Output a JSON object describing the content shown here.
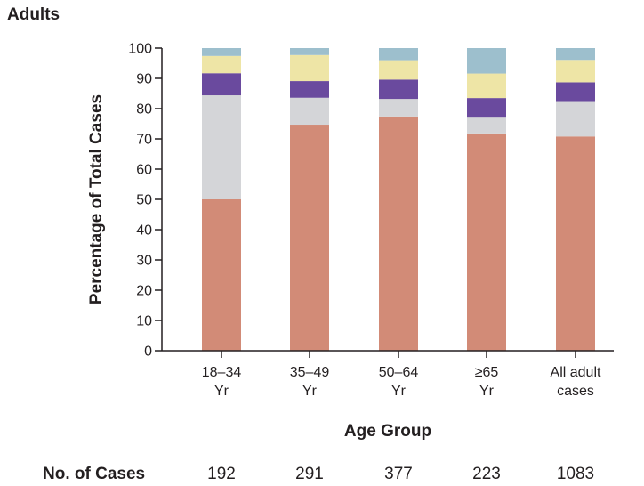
{
  "panel_label": "Adults",
  "cases_row": {
    "label": "No. of Cases",
    "values": [
      "192",
      "291",
      "377",
      "223",
      "1083"
    ]
  },
  "chart_data": {
    "type": "bar",
    "stacked": true,
    "title": "Adults",
    "xlabel": "Age Group",
    "ylabel": "Percentage of Total Cases",
    "ylim": [
      0,
      100
    ],
    "yticks": [
      0,
      10,
      20,
      30,
      40,
      50,
      60,
      70,
      80,
      90,
      100
    ],
    "categories": [
      [
        "18–34",
        "Yr"
      ],
      [
        "35–49",
        "Yr"
      ],
      [
        "50–64",
        "Yr"
      ],
      [
        "≥65",
        "Yr"
      ],
      [
        "All adult",
        "cases"
      ]
    ],
    "series": [
      {
        "name": "segment-1",
        "color": "#d28b77",
        "values": [
          50.0,
          74.7,
          77.4,
          71.8,
          70.8
        ]
      },
      {
        "name": "segment-2",
        "color": "#d4d5d8",
        "values": [
          34.4,
          8.9,
          5.8,
          5.2,
          11.4
        ]
      },
      {
        "name": "segment-3",
        "color": "#6a4a9e",
        "values": [
          7.3,
          5.5,
          6.4,
          6.5,
          6.5
        ]
      },
      {
        "name": "segment-4",
        "color": "#eee5a6",
        "values": [
          5.7,
          8.6,
          6.4,
          8.1,
          7.4
        ]
      },
      {
        "name": "segment-5",
        "color": "#9dbfcd",
        "values": [
          2.6,
          2.3,
          4.0,
          8.4,
          3.9
        ]
      }
    ]
  }
}
